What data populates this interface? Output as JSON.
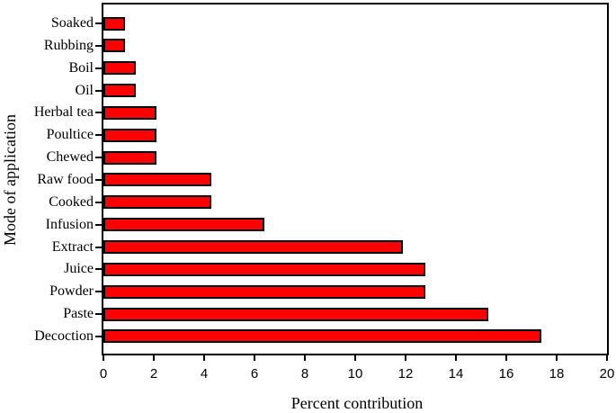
{
  "figure": {
    "background": "#ffffff",
    "axis_color": "#000000"
  },
  "chart_data": {
    "type": "bar",
    "orientation": "horizontal",
    "title": "",
    "xlabel": "Percent contribution",
    "ylabel": "Mode of application",
    "categories": [
      "Soaked",
      "Rubbing",
      "Boil",
      "Oil",
      "Herbal tea",
      "Poultice",
      "Chewed",
      "Raw food",
      "Cooked",
      "Infusion",
      "Extract",
      "Juice",
      "Powder",
      "Paste",
      "Decoction"
    ],
    "values": [
      0.85,
      0.85,
      1.3,
      1.3,
      2.1,
      2.1,
      2.1,
      4.3,
      4.3,
      6.4,
      11.9,
      12.8,
      12.8,
      15.3,
      17.4
    ],
    "xlim": [
      0,
      20
    ],
    "xticks": [
      0,
      2,
      4,
      6,
      8,
      10,
      12,
      14,
      16,
      18,
      20
    ],
    "bar_color": "#ff0000",
    "bar_border_color": "#000000",
    "grid": false,
    "legend": false
  }
}
